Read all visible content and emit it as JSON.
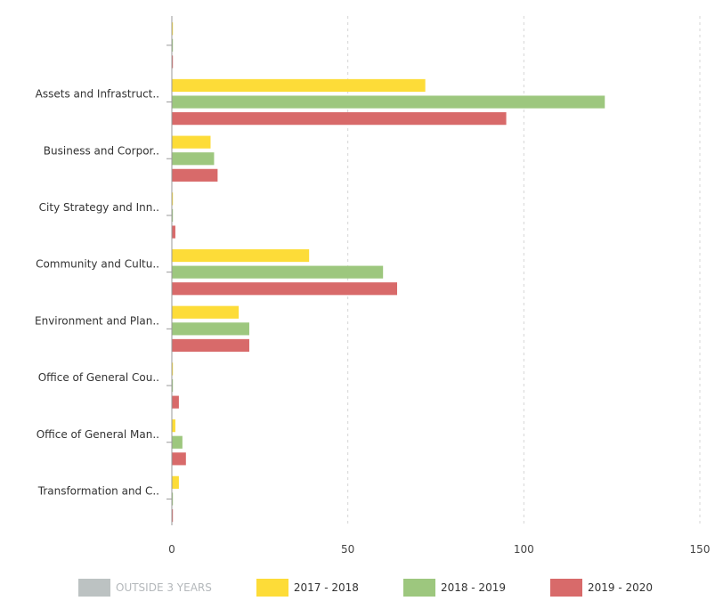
{
  "chart_data": {
    "type": "bar",
    "orientation": "horizontal",
    "categories": [
      "",
      "Assets and Infrastruct..",
      "Business and Corpor..",
      "City Strategy and Inn..",
      "Community and Cultu..",
      "Environment and Plan..",
      "Office of General Cou..",
      "Office of General Man..",
      "Transformation and C.."
    ],
    "series": [
      {
        "name": "OUTSIDE 3 YEARS",
        "color": "#bcc2c2",
        "active": false,
        "values": [
          0,
          0,
          0,
          0,
          0,
          0,
          0,
          0,
          0
        ]
      },
      {
        "name": "2017 - 2018",
        "color": "#fddc38",
        "active": true,
        "values": [
          0.2,
          72,
          11,
          0.2,
          39,
          19,
          0.2,
          1,
          2
        ]
      },
      {
        "name": "2018 - 2019",
        "color": "#9dc77e",
        "active": true,
        "values": [
          0.2,
          123,
          12,
          0.2,
          60,
          22,
          0.2,
          3,
          0.2
        ]
      },
      {
        "name": "2019 - 2020",
        "color": "#d86a6a",
        "active": true,
        "values": [
          0.2,
          95,
          13,
          1,
          64,
          22,
          2,
          4,
          0.2
        ]
      }
    ],
    "xlim": [
      0,
      150
    ],
    "xticks": [
      0,
      50,
      100,
      150
    ],
    "xtick_labels": [
      "0",
      "50",
      "100",
      "150"
    ],
    "grid": true,
    "legend_position": "bottom",
    "title": "",
    "xlabel": "",
    "ylabel": ""
  }
}
